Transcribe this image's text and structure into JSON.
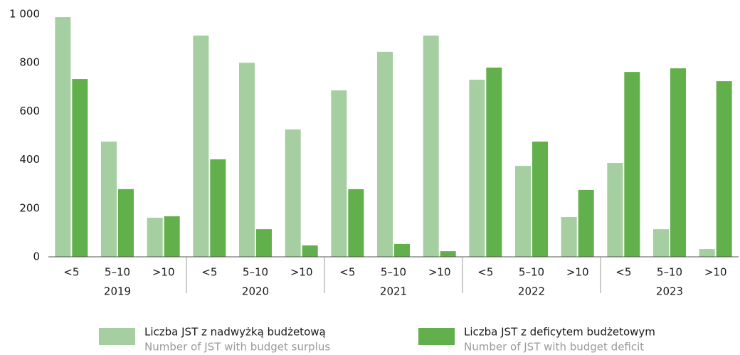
{
  "chart_data": {
    "type": "bar",
    "categories": [
      "<5",
      "5–10",
      ">10",
      "<5",
      "5–10",
      ">10",
      "<5",
      "5–10",
      ">10",
      "<5",
      "5–10",
      ">10",
      "<5",
      "5–10",
      ">10"
    ],
    "groups": [
      "2019",
      "2020",
      "2021",
      "2022",
      "2023"
    ],
    "series": [
      {
        "name": "Liczba JST z nadwyżką budżetową",
        "name_secondary": "Number of JST with budget surplus",
        "color": "#a5cfa0",
        "values": [
          988,
          475,
          161,
          912,
          800,
          525,
          686,
          845,
          912,
          730,
          375,
          164,
          387,
          114,
          32
        ]
      },
      {
        "name": "Liczba JST z deficytem budżetowym",
        "name_secondary": "Number of JST with budget deficit",
        "color": "#62b04b",
        "values": [
          733,
          279,
          167,
          402,
          114,
          47,
          279,
          53,
          23,
          780,
          475,
          276,
          762,
          777,
          724
        ]
      }
    ],
    "ylim": [
      0,
      1000
    ],
    "yticks": [
      0,
      200,
      400,
      600,
      800,
      {
        "value": 1000,
        "label": "1 000"
      }
    ],
    "grid": false
  }
}
